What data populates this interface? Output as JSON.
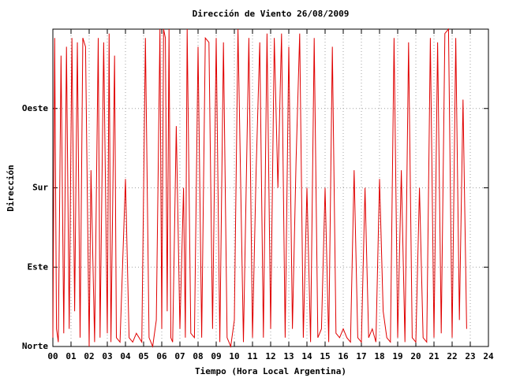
{
  "chart_data": {
    "type": "line",
    "title": "Dirección de Viento 26/08/2009",
    "x_label": "Tiempo (Hora Local Argentina)",
    "y_label": "Dirección",
    "grid": true,
    "xlim": [
      0,
      24
    ],
    "ylim": [
      0,
      360
    ],
    "xticks": [
      {
        "value": 0,
        "label": "00"
      },
      {
        "value": 1,
        "label": "01"
      },
      {
        "value": 2,
        "label": "02"
      },
      {
        "value": 3,
        "label": "03"
      },
      {
        "value": 4,
        "label": "04"
      },
      {
        "value": 5,
        "label": "05"
      },
      {
        "value": 6,
        "label": "06"
      },
      {
        "value": 7,
        "label": "07"
      },
      {
        "value": 8,
        "label": "08"
      },
      {
        "value": 9,
        "label": "09"
      },
      10,
      11,
      12,
      13,
      14,
      15,
      16,
      17,
      18,
      19,
      20,
      21,
      22,
      23,
      24
    ],
    "yticks": [
      {
        "value": 0,
        "label": "Norte"
      },
      {
        "value": 90,
        "label": "Este"
      },
      {
        "value": 180,
        "label": "Sur"
      },
      {
        "value": 270,
        "label": "Oeste"
      }
    ],
    "x": [
      0,
      0.1,
      0.2,
      0.3,
      0.45,
      0.6,
      0.75,
      0.9,
      1.05,
      1.2,
      1.35,
      1.5,
      1.65,
      1.8,
      2.0,
      2.1,
      2.3,
      2.5,
      2.6,
      2.8,
      3.0,
      3.1,
      3.2,
      3.4,
      3.5,
      3.7,
      4.0,
      4.2,
      4.4,
      4.6,
      4.9,
      5.1,
      5.3,
      5.5,
      5.7,
      5.9,
      6.0,
      6.1,
      6.2,
      6.3,
      6.4,
      6.5,
      6.6,
      6.8,
      7.0,
      7.2,
      7.3,
      7.4,
      7.6,
      7.8,
      8.0,
      8.2,
      8.4,
      8.6,
      8.8,
      9.0,
      9.2,
      9.4,
      9.6,
      9.8,
      10.0,
      10.2,
      10.5,
      10.8,
      11.0,
      11.2,
      11.4,
      11.6,
      11.8,
      12.0,
      12.2,
      12.4,
      12.6,
      12.8,
      13.0,
      13.2,
      13.4,
      13.6,
      13.8,
      14.0,
      14.2,
      14.4,
      14.6,
      14.8,
      15.0,
      15.2,
      15.4,
      15.6,
      15.8,
      16.0,
      16.2,
      16.4,
      16.6,
      16.8,
      17.0,
      17.2,
      17.4,
      17.6,
      17.8,
      18.0,
      18.2,
      18.4,
      18.6,
      18.8,
      19.0,
      19.2,
      19.4,
      19.6,
      19.8,
      20.0,
      20.2,
      20.4,
      20.6,
      20.8,
      21.0,
      21.2,
      21.4,
      21.6,
      21.8,
      22.0,
      22.2,
      22.4,
      22.6,
      22.8
    ],
    "series": [
      {
        "color": "#e00000",
        "values": [
          10,
          350,
          20,
          5,
          330,
          15,
          340,
          20,
          350,
          40,
          345,
          10,
          350,
          340,
          0,
          200,
          5,
          350,
          10,
          345,
          15,
          355,
          5,
          330,
          10,
          5,
          190,
          10,
          5,
          15,
          5,
          350,
          10,
          0,
          30,
          360,
          20,
          360,
          350,
          40,
          360,
          10,
          5,
          250,
          20,
          180,
          10,
          360,
          15,
          10,
          340,
          10,
          350,
          345,
          20,
          350,
          5,
          345,
          10,
          0,
          30,
          360,
          5,
          350,
          10,
          200,
          345,
          10,
          355,
          20,
          350,
          180,
          355,
          10,
          340,
          20,
          210,
          355,
          10,
          180,
          5,
          350,
          10,
          20,
          180,
          5,
          340,
          15,
          10,
          20,
          10,
          5,
          200,
          10,
          5,
          180,
          10,
          20,
          5,
          190,
          40,
          10,
          5,
          350,
          10,
          200,
          5,
          345,
          10,
          5,
          180,
          10,
          5,
          350,
          10,
          345,
          15,
          355,
          360,
          10,
          350,
          30,
          280,
          20
        ]
      }
    ]
  }
}
